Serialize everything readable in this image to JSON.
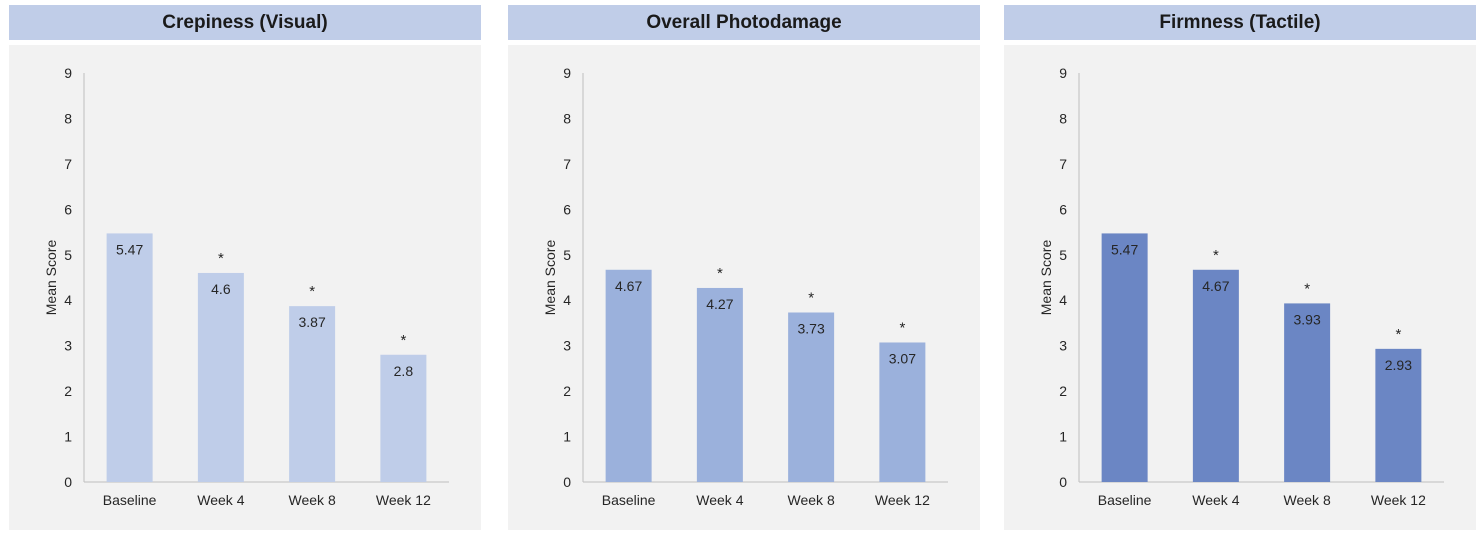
{
  "chart_data": [
    {
      "type": "bar",
      "title": "Crepiness (Visual)",
      "ylabel": "Mean Score",
      "xlabel": "",
      "ylim": [
        0,
        9
      ],
      "yticks": [
        "0",
        "1",
        "2",
        "3",
        "4",
        "5",
        "6",
        "7",
        "8",
        "9"
      ],
      "categories": [
        "Baseline",
        "Week 4",
        "Week 8",
        "Week 12"
      ],
      "values": [
        5.47,
        4.6,
        3.87,
        2.8
      ],
      "data_labels": [
        "5.47",
        "4.6",
        "3.87",
        "2.8"
      ],
      "significance": [
        "",
        "*",
        "*",
        "*"
      ],
      "bar_color": "#bfcde9",
      "grid": false
    },
    {
      "type": "bar",
      "title": "Overall Photodamage",
      "ylabel": "Mean Score",
      "xlabel": "",
      "ylim": [
        0,
        9
      ],
      "yticks": [
        "0",
        "1",
        "2",
        "3",
        "4",
        "5",
        "6",
        "7",
        "8",
        "9"
      ],
      "categories": [
        "Baseline",
        "Week 4",
        "Week 8",
        "Week 12"
      ],
      "values": [
        4.67,
        4.27,
        3.73,
        3.07
      ],
      "data_labels": [
        "4.67",
        "4.27",
        "3.73",
        "3.07"
      ],
      "significance": [
        "",
        "*",
        "*",
        "*"
      ],
      "bar_color": "#9bb1dc",
      "grid": false
    },
    {
      "type": "bar",
      "title": "Firmness (Tactile)",
      "ylabel": "Mean Score",
      "xlabel": "",
      "ylim": [
        0,
        9
      ],
      "yticks": [
        "0",
        "1",
        "2",
        "3",
        "4",
        "5",
        "6",
        "7",
        "8",
        "9"
      ],
      "categories": [
        "Baseline",
        "Week 4",
        "Week 8",
        "Week 12"
      ],
      "values": [
        5.47,
        4.67,
        3.93,
        2.93
      ],
      "data_labels": [
        "5.47",
        "4.67",
        "3.93",
        "2.93"
      ],
      "significance": [
        "",
        "*",
        "*",
        "*"
      ],
      "bar_color": "#6b86c4",
      "grid": false
    }
  ],
  "colors": {
    "header_background": "#c0cde8",
    "panel_background": "#f2f2f2",
    "axis": "#bfbfbf",
    "text": "#262626"
  }
}
